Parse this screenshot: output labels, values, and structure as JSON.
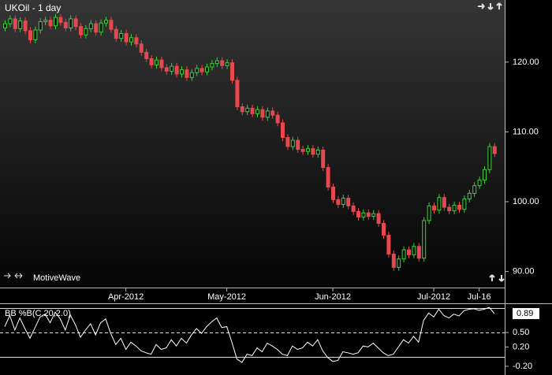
{
  "chart_data": [
    {
      "type": "candlestick",
      "title": "UKOil - 1 day",
      "watermark": "MotiveWave",
      "up_color": "#3ccf3c",
      "down_color": "#e5484d",
      "ylim": [
        87.7,
        128.9
      ],
      "yticks": [
        {
          "value": 90,
          "label": "90.00"
        },
        {
          "value": 100,
          "label": "100.00"
        },
        {
          "value": 110,
          "label": "110.00"
        },
        {
          "value": 120,
          "label": "120.00"
        }
      ],
      "categories": [
        null,
        null,
        null,
        null,
        null,
        null,
        null,
        null,
        null,
        null,
        null,
        null,
        null,
        null,
        null,
        null,
        null,
        null,
        null,
        null,
        null,
        null,
        null,
        null,
        "Apr-2012",
        null,
        null,
        null,
        null,
        null,
        null,
        null,
        null,
        null,
        null,
        null,
        null,
        null,
        null,
        null,
        null,
        null,
        null,
        null,
        "May-2012",
        null,
        null,
        null,
        null,
        null,
        null,
        null,
        null,
        null,
        null,
        null,
        null,
        null,
        null,
        null,
        null,
        null,
        null,
        null,
        null,
        "Jun-2012",
        null,
        null,
        null,
        null,
        null,
        null,
        null,
        null,
        null,
        null,
        null,
        null,
        null,
        null,
        null,
        null,
        null,
        null,
        null,
        "Jul-2012",
        null,
        null,
        null,
        null,
        null,
        null,
        null,
        null,
        "Jul-16",
        null,
        null,
        null
      ],
      "open": [
        124.9,
        125.5,
        126.2,
        124.8,
        125.9,
        124.5,
        123.2,
        124.6,
        125.8,
        126.0,
        125.2,
        126.4,
        125.7,
        124.9,
        126.2,
        125.1,
        123.9,
        124.8,
        125.5,
        124.3,
        125.6,
        126.0,
        124.7,
        123.4,
        124.1,
        122.9,
        123.5,
        122.6,
        121.4,
        120.5,
        119.6,
        120.3,
        119.2,
        118.7,
        119.4,
        118.3,
        118.9,
        117.8,
        118.5,
        119.1,
        118.6,
        119.3,
        119.8,
        120.2,
        119.5,
        119.9,
        117.4,
        113.6,
        112.9,
        113.4,
        112.6,
        113.2,
        112.1,
        113.0,
        112.4,
        111.3,
        109.2,
        107.9,
        108.8,
        107.5,
        107.2,
        107.6,
        106.8,
        107.4,
        104.9,
        102.1,
        100.3,
        99.6,
        100.5,
        99.4,
        98.6,
        97.8,
        98.4,
        97.9,
        98.3,
        96.9,
        95.2,
        92.5,
        90.6,
        91.8,
        93.1,
        92.4,
        93.6,
        91.9,
        97.3,
        99.4,
        98.8,
        100.6,
        99.2,
        98.7,
        99.5,
        98.9,
        100.4,
        101.2,
        102.3,
        103.1,
        104.6,
        107.9
      ],
      "high": [
        126.0,
        126.7,
        126.7,
        126.4,
        126.4,
        125.0,
        125.1,
        126.3,
        126.5,
        126.5,
        126.9,
        126.9,
        126.2,
        126.7,
        126.7,
        125.6,
        125.3,
        126.0,
        126.0,
        126.1,
        126.5,
        126.5,
        125.2,
        124.6,
        124.6,
        124.0,
        124.0,
        123.1,
        121.9,
        121.0,
        120.8,
        120.8,
        119.7,
        119.9,
        119.9,
        119.4,
        119.4,
        119.0,
        119.6,
        119.6,
        119.8,
        120.3,
        120.7,
        120.7,
        120.4,
        120.4,
        117.9,
        114.1,
        113.9,
        113.9,
        113.7,
        113.7,
        113.5,
        113.5,
        112.9,
        111.8,
        109.7,
        109.3,
        109.3,
        108.0,
        108.1,
        108.1,
        107.9,
        107.9,
        105.4,
        102.6,
        100.8,
        101.0,
        101.0,
        99.9,
        99.1,
        98.9,
        98.9,
        98.8,
        98.8,
        97.4,
        95.7,
        93.0,
        92.3,
        93.6,
        93.6,
        94.1,
        94.1,
        97.8,
        99.9,
        99.9,
        101.1,
        101.1,
        99.7,
        100.0,
        100.0,
        100.9,
        101.7,
        102.8,
        103.6,
        105.1,
        108.4,
        108.4
      ],
      "low": [
        124.4,
        125.0,
        124.3,
        124.3,
        124.0,
        122.7,
        122.7,
        124.1,
        125.3,
        124.7,
        124.7,
        125.2,
        124.4,
        124.4,
        124.6,
        123.4,
        123.4,
        124.3,
        123.8,
        123.8,
        125.1,
        124.2,
        122.9,
        122.9,
        122.4,
        122.4,
        122.1,
        120.9,
        120.0,
        119.1,
        119.1,
        118.7,
        118.2,
        118.2,
        117.8,
        117.8,
        117.3,
        117.3,
        118.0,
        118.1,
        118.1,
        118.8,
        119.3,
        119.0,
        119.0,
        116.9,
        113.1,
        112.4,
        112.4,
        112.1,
        112.1,
        111.6,
        111.6,
        111.9,
        110.8,
        108.7,
        107.4,
        107.4,
        107.0,
        106.7,
        106.7,
        106.3,
        106.3,
        104.4,
        101.6,
        99.8,
        99.1,
        99.1,
        98.9,
        98.1,
        97.3,
        97.3,
        97.4,
        97.4,
        96.4,
        94.7,
        92.0,
        90.1,
        90.1,
        91.3,
        91.9,
        91.9,
        91.4,
        91.4,
        96.8,
        98.3,
        98.3,
        98.7,
        98.2,
        98.2,
        98.4,
        98.4,
        99.9,
        100.7,
        101.8,
        102.6,
        104.1,
        106.4
      ],
      "close": [
        125.5,
        126.2,
        124.8,
        125.9,
        124.5,
        123.2,
        124.6,
        125.8,
        126.0,
        125.2,
        126.4,
        125.7,
        124.9,
        126.2,
        125.1,
        123.9,
        124.8,
        125.5,
        124.3,
        125.6,
        126.0,
        124.7,
        123.4,
        124.1,
        122.9,
        123.5,
        122.6,
        121.4,
        120.5,
        119.6,
        120.3,
        119.2,
        118.7,
        119.4,
        118.3,
        118.9,
        117.8,
        118.5,
        119.1,
        118.6,
        119.3,
        119.8,
        120.2,
        119.5,
        119.9,
        117.4,
        113.6,
        112.9,
        113.4,
        112.6,
        113.2,
        112.1,
        113.0,
        112.4,
        111.3,
        109.2,
        107.9,
        108.8,
        107.5,
        107.2,
        107.6,
        106.8,
        107.4,
        104.9,
        102.1,
        100.3,
        99.6,
        100.5,
        99.4,
        98.6,
        97.8,
        98.4,
        97.9,
        98.3,
        96.9,
        95.2,
        92.5,
        90.6,
        91.8,
        93.1,
        92.4,
        93.6,
        91.9,
        97.3,
        99.4,
        98.8,
        100.6,
        99.2,
        98.7,
        99.5,
        98.9,
        100.4,
        101.2,
        102.3,
        103.1,
        104.6,
        107.9,
        106.9
      ]
    },
    {
      "type": "line",
      "title": "BB %B(C,20,2.0)",
      "color": "#ffffff",
      "ylim": [
        -0.38,
        1.07
      ],
      "yticks": [
        {
          "value": -0.2,
          "label": "-0.20"
        },
        {
          "value": 0.2,
          "label": "0.20"
        },
        {
          "value": 0.5,
          "label": "0.50"
        }
      ],
      "reference_lines": [
        0,
        0.5,
        1
      ],
      "values": [
        0.62,
        0.85,
        0.55,
        0.8,
        0.58,
        0.38,
        0.6,
        0.82,
        0.88,
        0.7,
        0.92,
        0.78,
        0.55,
        0.86,
        0.66,
        0.4,
        0.55,
        0.68,
        0.45,
        0.7,
        0.78,
        0.48,
        0.25,
        0.38,
        0.15,
        0.3,
        0.22,
        0.12,
        0.08,
        0.05,
        0.25,
        0.15,
        0.18,
        0.35,
        0.22,
        0.38,
        0.28,
        0.45,
        0.58,
        0.48,
        0.62,
        0.72,
        0.8,
        0.6,
        0.62,
        0.3,
        -0.05,
        -0.12,
        0.05,
        0.02,
        0.18,
        0.1,
        0.28,
        0.22,
        0.15,
        0.05,
        0.02,
        0.22,
        0.15,
        0.18,
        0.3,
        0.22,
        0.35,
        0.12,
        -0.02,
        -0.1,
        -0.08,
        0.1,
        0.08,
        0.05,
        0.08,
        0.22,
        0.2,
        0.28,
        0.18,
        0.08,
        0.02,
        0.05,
        0.2,
        0.35,
        0.28,
        0.42,
        0.3,
        0.75,
        0.9,
        0.82,
        0.98,
        0.85,
        0.8,
        0.88,
        0.84,
        0.95,
        0.98,
        0.99,
        0.96,
        0.98,
        1.02,
        0.89
      ]
    }
  ]
}
